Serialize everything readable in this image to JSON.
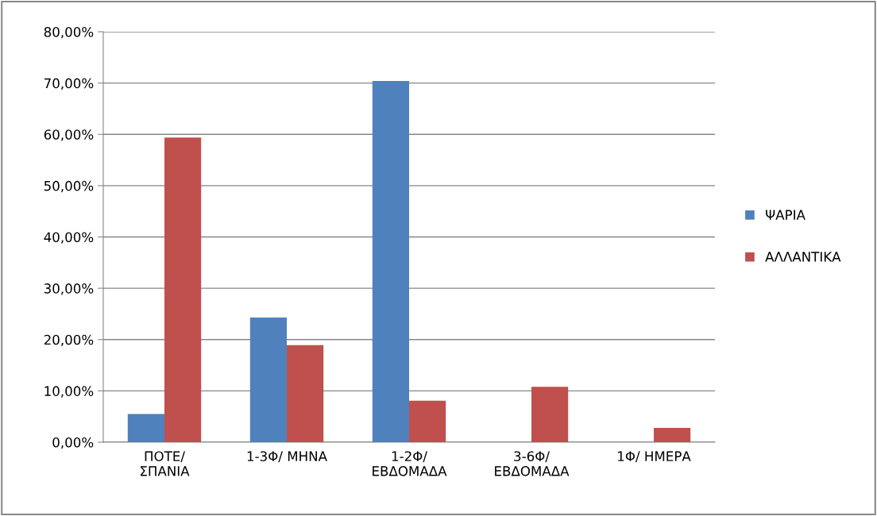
{
  "chart_data": {
    "type": "bar",
    "categories": [
      "ΠΟΤΕ/\nΣΠΑΝΙΑ",
      "1-3Φ/ ΜΗΝΑ",
      "1-2Φ/\nΕΒΔΟΜΑΔΑ",
      "3-6Φ/\nΕΒΔΟΜΑΔΑ",
      "1Φ/ ΗΜΕΡΑ"
    ],
    "series": [
      {
        "name": "ΨΑΡΙΑ",
        "color": "#4f81bd",
        "values": [
          5.5,
          24.3,
          70.4,
          0,
          0
        ]
      },
      {
        "name": "ΑΛΛΑΝΤΙΚΑ",
        "color": "#c0504d",
        "values": [
          59.4,
          18.9,
          8.1,
          10.8,
          2.8
        ]
      }
    ],
    "ylim": [
      0,
      80
    ],
    "yticks": [
      {
        "value": 0,
        "label": "0,00%"
      },
      {
        "value": 10,
        "label": "10,00%"
      },
      {
        "value": 20,
        "label": "20,00%"
      },
      {
        "value": 30,
        "label": "30,00%"
      },
      {
        "value": 40,
        "label": "40,00%"
      },
      {
        "value": 50,
        "label": "50,00%"
      },
      {
        "value": 60,
        "label": "60,00%"
      },
      {
        "value": 70,
        "label": "70,00%"
      },
      {
        "value": 80,
        "label": "80,00%"
      }
    ],
    "grid": "y",
    "legend": "right"
  }
}
